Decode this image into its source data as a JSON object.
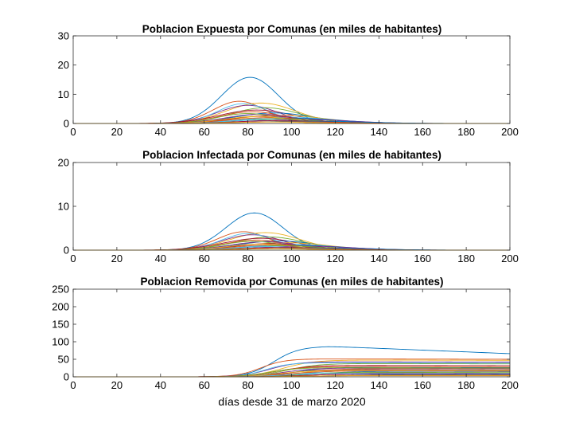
{
  "chart_data": [
    {
      "type": "line",
      "title": "Poblacion Expuesta por Comunas (en miles de habitantes)",
      "xlabel": "",
      "ylabel": "",
      "xlim": [
        0,
        200
      ],
      "ylim": [
        0,
        30
      ],
      "xticks": [
        0,
        20,
        40,
        60,
        80,
        100,
        120,
        140,
        160,
        180,
        200
      ],
      "yticks": [
        0,
        10,
        20,
        30
      ],
      "grid": false,
      "legend": "none",
      "curve_shape": "gaussian",
      "series": [
        {
          "color": "#0072bd",
          "peak_day": 81,
          "peak": 15.8,
          "width": 13,
          "end": 0
        },
        {
          "color": "#d95319",
          "peak_day": 76,
          "peak": 7.6,
          "width": 12,
          "end": 0
        },
        {
          "color": "#edb120",
          "peak_day": 86,
          "peak": 7.0,
          "width": 16,
          "end": 0
        },
        {
          "color": "#7e2f8e",
          "peak_day": 80,
          "peak": 6.2,
          "width": 14,
          "end": 0
        },
        {
          "color": "#77ac30",
          "peak_day": 88,
          "peak": 5.4,
          "width": 16,
          "end": 0
        },
        {
          "color": "#4dbeee",
          "peak_day": 78,
          "peak": 6.8,
          "width": 12,
          "end": 0
        },
        {
          "color": "#a2142f",
          "peak_day": 84,
          "peak": 4.6,
          "width": 17,
          "end": 0
        },
        {
          "color": "#0072bd",
          "peak_day": 92,
          "peak": 3.6,
          "width": 18,
          "end": 0
        },
        {
          "color": "#d95319",
          "peak_day": 82,
          "peak": 4.0,
          "width": 15,
          "end": 0
        },
        {
          "color": "#edb120",
          "peak_day": 95,
          "peak": 2.8,
          "width": 20,
          "end": 0
        },
        {
          "color": "#7e2f8e",
          "peak_day": 86,
          "peak": 3.2,
          "width": 16,
          "end": 0
        },
        {
          "color": "#77ac30",
          "peak_day": 80,
          "peak": 3.4,
          "width": 14,
          "end": 0
        },
        {
          "color": "#4dbeee",
          "peak_day": 98,
          "peak": 2.2,
          "width": 20,
          "end": 0
        },
        {
          "color": "#a2142f",
          "peak_day": 88,
          "peak": 2.6,
          "width": 16,
          "end": 0
        },
        {
          "color": "#0072bd",
          "peak_day": 100,
          "peak": 1.8,
          "width": 22,
          "end": 0
        },
        {
          "color": "#d95319",
          "peak_day": 90,
          "peak": 2.0,
          "width": 18,
          "end": 0
        },
        {
          "color": "#edb120",
          "peak_day": 84,
          "peak": 2.4,
          "width": 15,
          "end": 0
        },
        {
          "color": "#7e2f8e",
          "peak_day": 104,
          "peak": 1.4,
          "width": 22,
          "end": 0
        },
        {
          "color": "#77ac30",
          "peak_day": 94,
          "peak": 1.6,
          "width": 18,
          "end": 0
        },
        {
          "color": "#4dbeee",
          "peak_day": 86,
          "peak": 1.2,
          "width": 16,
          "end": 0
        },
        {
          "color": "#a2142f",
          "peak_day": 96,
          "peak": 1.0,
          "width": 20,
          "end": 0
        },
        {
          "color": "#0072bd",
          "peak_day": 108,
          "peak": 0.8,
          "width": 24,
          "end": 0
        },
        {
          "color": "#d95319",
          "peak_day": 100,
          "peak": 0.6,
          "width": 22,
          "end": 0
        },
        {
          "color": "#edb120",
          "peak_day": 90,
          "peak": 0.5,
          "width": 18,
          "end": 0
        }
      ]
    },
    {
      "type": "line",
      "title": "Poblacion Infectada por Comunas (en miles de habitantes)",
      "xlabel": "",
      "ylabel": "",
      "xlim": [
        0,
        200
      ],
      "ylim": [
        0,
        20
      ],
      "xticks": [
        0,
        20,
        40,
        60,
        80,
        100,
        120,
        140,
        160,
        180,
        200
      ],
      "yticks": [
        0,
        10,
        20
      ],
      "grid": false,
      "legend": "none",
      "curve_shape": "gaussian",
      "series": [
        {
          "color": "#0072bd",
          "peak_day": 83,
          "peak": 8.5,
          "width": 13,
          "end": 0
        },
        {
          "color": "#d95319",
          "peak_day": 78,
          "peak": 4.2,
          "width": 12,
          "end": 0
        },
        {
          "color": "#edb120",
          "peak_day": 88,
          "peak": 4.0,
          "width": 16,
          "end": 0
        },
        {
          "color": "#7e2f8e",
          "peak_day": 82,
          "peak": 3.5,
          "width": 14,
          "end": 0
        },
        {
          "color": "#77ac30",
          "peak_day": 90,
          "peak": 3.0,
          "width": 16,
          "end": 0
        },
        {
          "color": "#4dbeee",
          "peak_day": 80,
          "peak": 3.8,
          "width": 12,
          "end": 0
        },
        {
          "color": "#a2142f",
          "peak_day": 86,
          "peak": 2.7,
          "width": 17,
          "end": 0
        },
        {
          "color": "#0072bd",
          "peak_day": 94,
          "peak": 2.1,
          "width": 18,
          "end": 0
        },
        {
          "color": "#d95319",
          "peak_day": 84,
          "peak": 2.3,
          "width": 15,
          "end": 0
        },
        {
          "color": "#edb120",
          "peak_day": 97,
          "peak": 1.7,
          "width": 20,
          "end": 0
        },
        {
          "color": "#7e2f8e",
          "peak_day": 88,
          "peak": 1.9,
          "width": 16,
          "end": 0
        },
        {
          "color": "#77ac30",
          "peak_day": 82,
          "peak": 2.0,
          "width": 14,
          "end": 0
        },
        {
          "color": "#4dbeee",
          "peak_day": 100,
          "peak": 1.3,
          "width": 20,
          "end": 0
        },
        {
          "color": "#a2142f",
          "peak_day": 90,
          "peak": 1.5,
          "width": 16,
          "end": 0
        },
        {
          "color": "#0072bd",
          "peak_day": 102,
          "peak": 1.1,
          "width": 22,
          "end": 0
        },
        {
          "color": "#d95319",
          "peak_day": 92,
          "peak": 1.2,
          "width": 18,
          "end": 0
        },
        {
          "color": "#edb120",
          "peak_day": 86,
          "peak": 1.4,
          "width": 15,
          "end": 0
        },
        {
          "color": "#7e2f8e",
          "peak_day": 106,
          "peak": 0.9,
          "width": 22,
          "end": 0
        },
        {
          "color": "#77ac30",
          "peak_day": 96,
          "peak": 1.0,
          "width": 18,
          "end": 0
        },
        {
          "color": "#4dbeee",
          "peak_day": 88,
          "peak": 0.8,
          "width": 16,
          "end": 0
        },
        {
          "color": "#a2142f",
          "peak_day": 98,
          "peak": 0.6,
          "width": 20,
          "end": 0
        },
        {
          "color": "#0072bd",
          "peak_day": 110,
          "peak": 0.5,
          "width": 24,
          "end": 0
        },
        {
          "color": "#d95319",
          "peak_day": 102,
          "peak": 0.4,
          "width": 22,
          "end": 0
        },
        {
          "color": "#edb120",
          "peak_day": 92,
          "peak": 0.3,
          "width": 18,
          "end": 0
        }
      ]
    },
    {
      "type": "line",
      "title": "Poblacion Removida por Comunas (en miles de habitantes)",
      "xlabel": "días desde 31 de marzo 2020",
      "ylabel": "",
      "xlim": [
        0,
        200
      ],
      "ylim": [
        0,
        250
      ],
      "xticks": [
        0,
        20,
        40,
        60,
        80,
        100,
        120,
        140,
        160,
        180,
        200
      ],
      "yticks": [
        0,
        50,
        100,
        150,
        200,
        250
      ],
      "grid": false,
      "legend": "none",
      "curve_shape": "sigmoid",
      "series": [
        {
          "color": "#0072bd",
          "peak_day": 92,
          "peak": 87,
          "width": 13,
          "end": 66
        },
        {
          "color": "#d95319",
          "peak_day": 86,
          "peak": 51,
          "width": 12,
          "end": 50
        },
        {
          "color": "#edb120",
          "peak_day": 96,
          "peak": 48,
          "width": 16,
          "end": 47
        },
        {
          "color": "#7e2f8e",
          "peak_day": 90,
          "peak": 43,
          "width": 14,
          "end": 42
        },
        {
          "color": "#77ac30",
          "peak_day": 98,
          "peak": 38,
          "width": 16,
          "end": 37
        },
        {
          "color": "#4dbeee",
          "peak_day": 88,
          "peak": 40,
          "width": 12,
          "end": 39
        },
        {
          "color": "#a2142f",
          "peak_day": 94,
          "peak": 33,
          "width": 17,
          "end": 32
        },
        {
          "color": "#0072bd",
          "peak_day": 102,
          "peak": 28,
          "width": 18,
          "end": 27
        },
        {
          "color": "#d95319",
          "peak_day": 92,
          "peak": 29,
          "width": 15,
          "end": 28
        },
        {
          "color": "#edb120",
          "peak_day": 105,
          "peak": 24,
          "width": 20,
          "end": 23
        },
        {
          "color": "#7e2f8e",
          "peak_day": 96,
          "peak": 25,
          "width": 16,
          "end": 24
        },
        {
          "color": "#77ac30",
          "peak_day": 90,
          "peak": 26,
          "width": 14,
          "end": 25
        },
        {
          "color": "#4dbeee",
          "peak_day": 108,
          "peak": 20,
          "width": 20,
          "end": 19
        },
        {
          "color": "#a2142f",
          "peak_day": 98,
          "peak": 21,
          "width": 16,
          "end": 20
        },
        {
          "color": "#0072bd",
          "peak_day": 110,
          "peak": 16,
          "width": 22,
          "end": 15
        },
        {
          "color": "#d95319",
          "peak_day": 100,
          "peak": 17,
          "width": 18,
          "end": 16
        },
        {
          "color": "#edb120",
          "peak_day": 94,
          "peak": 18,
          "width": 15,
          "end": 17
        },
        {
          "color": "#7e2f8e",
          "peak_day": 114,
          "peak": 12,
          "width": 22,
          "end": 11
        },
        {
          "color": "#77ac30",
          "peak_day": 104,
          "peak": 13,
          "width": 18,
          "end": 12
        },
        {
          "color": "#4dbeee",
          "peak_day": 96,
          "peak": 10,
          "width": 16,
          "end": 9
        },
        {
          "color": "#a2142f",
          "peak_day": 106,
          "peak": 8,
          "width": 20,
          "end": 7
        },
        {
          "color": "#0072bd",
          "peak_day": 118,
          "peak": 6,
          "width": 24,
          "end": 5
        },
        {
          "color": "#d95319",
          "peak_day": 110,
          "peak": 4,
          "width": 22,
          "end": 4
        },
        {
          "color": "#edb120",
          "peak_day": 100,
          "peak": 3,
          "width": 18,
          "end": 3
        }
      ]
    }
  ]
}
